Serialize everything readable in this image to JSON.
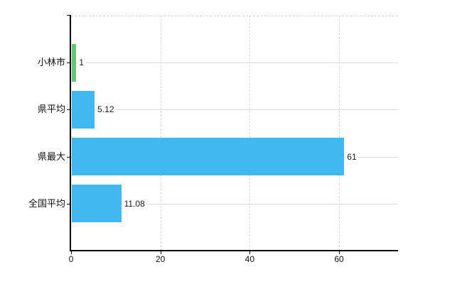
{
  "chart_data": {
    "type": "bar",
    "orientation": "horizontal",
    "title": "",
    "categories": [
      "小林市",
      "県平均",
      "県最大",
      "全国平均"
    ],
    "values": [
      1,
      5.12,
      61,
      11.08
    ],
    "value_labels": [
      "1",
      "5.12",
      "61",
      "11.08"
    ],
    "bar_colors": [
      "#66c573",
      "#3fb9f0",
      "#3fb9f0",
      "#3fb9f0"
    ],
    "x_axis": {
      "tick_values": [
        0,
        20,
        40,
        60
      ],
      "tick_labels": [
        "0",
        "20",
        "40",
        "60"
      ],
      "min": 0,
      "max": 73.2
    },
    "grid": {
      "horizontal": true,
      "vertical": true,
      "top_border": "dashed"
    },
    "legend": "none"
  },
  "colors": {
    "background": "#ffffff",
    "axis": "#000000",
    "grid_horizontal": "#d9ddd9",
    "grid_vertical": "#d9d9d9",
    "bar_blue": "#3fb9f0",
    "bar_green": "#66c573",
    "text": "#111111"
  }
}
